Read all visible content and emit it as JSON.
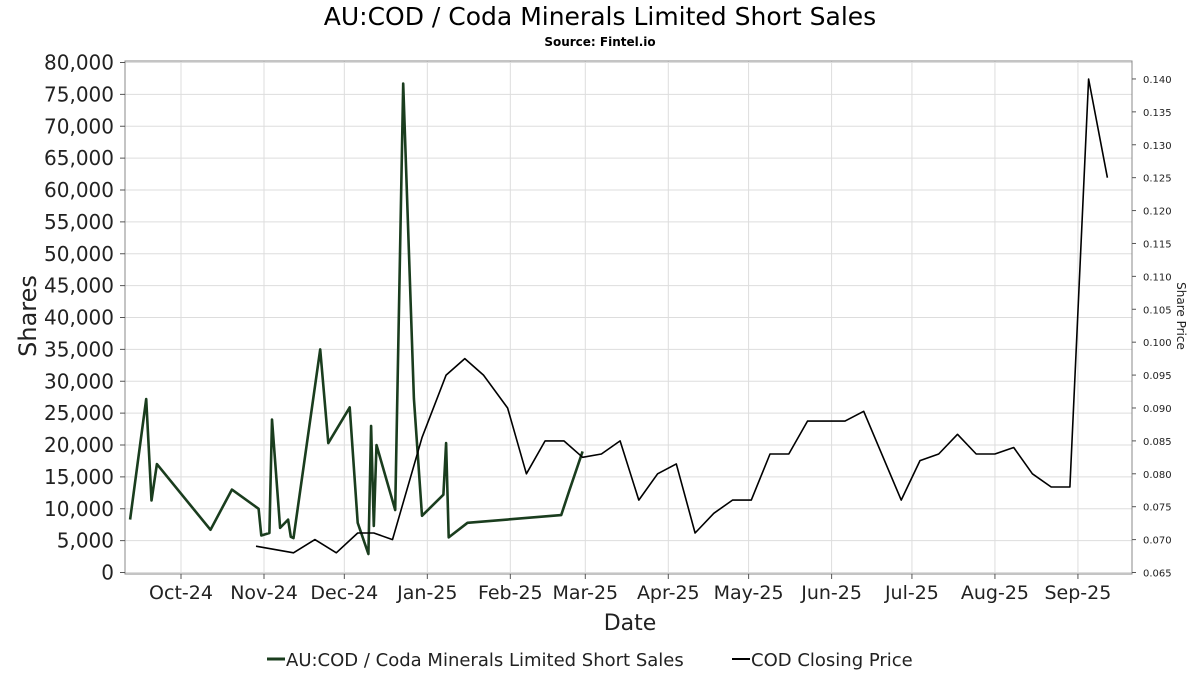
{
  "chart_data": {
    "type": "line",
    "title": "AU:COD / Coda Minerals Limited Short Sales",
    "subtitle": "Source: Fintel.io",
    "xlabel": "Date",
    "ylabel": "Shares",
    "y2label": "Share Price",
    "ylim": [
      0,
      80000
    ],
    "y2lim": [
      0.065,
      0.1425
    ],
    "grid": true,
    "legend_position": "bottom-center",
    "x_ticks": [
      "Oct-24",
      "Nov-24",
      "Dec-24",
      "Jan-25",
      "Feb-25",
      "Mar-25",
      "Apr-25",
      "May-25",
      "Jun-25",
      "Jul-25",
      "Aug-25",
      "Sep-25"
    ],
    "y_ticks": [
      "0",
      "5,000",
      "10,000",
      "15,000",
      "20,000",
      "25,000",
      "30,000",
      "35,000",
      "40,000",
      "45,000",
      "50,000",
      "55,000",
      "60,000",
      "65,000",
      "70,000",
      "75,000",
      "80,000"
    ],
    "y2_ticks": [
      "0.065",
      "0.070",
      "0.075",
      "0.080",
      "0.085",
      "0.090",
      "0.095",
      "0.100",
      "0.105",
      "0.110",
      "0.115",
      "0.120",
      "0.125",
      "0.130",
      "0.135",
      "0.140"
    ],
    "series": [
      {
        "name": "AU:COD / Coda Minerals Limited Short Sales",
        "color": "#1a3d1e",
        "axis": "left",
        "points": [
          [
            "2024-09-12",
            8300
          ],
          [
            "2024-09-18",
            27200
          ],
          [
            "2024-09-20",
            11300
          ],
          [
            "2024-09-22",
            17000
          ],
          [
            "2024-10-12",
            6700
          ],
          [
            "2024-10-20",
            13000
          ],
          [
            "2024-10-30",
            10000
          ],
          [
            "2024-10-31",
            5800
          ],
          [
            "2024-11-03",
            6200
          ],
          [
            "2024-11-04",
            24000
          ],
          [
            "2024-11-07",
            7000
          ],
          [
            "2024-11-10",
            8300
          ],
          [
            "2024-11-11",
            5600
          ],
          [
            "2024-11-12",
            5400
          ],
          [
            "2024-11-22",
            35000
          ],
          [
            "2024-11-25",
            20300
          ],
          [
            "2024-12-03",
            25900
          ],
          [
            "2024-12-06",
            7800
          ],
          [
            "2024-12-10",
            2900
          ],
          [
            "2024-12-11",
            23000
          ],
          [
            "2024-12-12",
            7300
          ],
          [
            "2024-12-13",
            20000
          ],
          [
            "2024-12-20",
            9800
          ],
          [
            "2024-12-23",
            76700
          ],
          [
            "2024-12-27",
            27300
          ],
          [
            "2024-12-30",
            8900
          ],
          [
            "2025-01-07",
            12200
          ],
          [
            "2025-01-08",
            20300
          ],
          [
            "2025-01-09",
            5500
          ],
          [
            "2025-01-16",
            7800
          ],
          [
            "2025-02-20",
            9000
          ],
          [
            "2025-02-23",
            12800
          ],
          [
            "2025-02-28",
            19000
          ]
        ]
      },
      {
        "name": "COD Closing Price",
        "color": "#000000",
        "axis": "right",
        "points": [
          [
            "2024-10-29",
            0.069
          ],
          [
            "2024-11-12",
            0.068
          ],
          [
            "2024-11-20",
            0.07
          ],
          [
            "2024-11-28",
            0.068
          ],
          [
            "2024-12-06",
            0.071
          ],
          [
            "2024-12-12",
            0.071
          ],
          [
            "2024-12-19",
            0.07
          ],
          [
            "2024-12-30",
            0.0855
          ],
          [
            "2025-01-08",
            0.095
          ],
          [
            "2025-01-15",
            0.0975
          ],
          [
            "2025-01-22",
            0.095
          ],
          [
            "2025-01-31",
            0.09
          ],
          [
            "2025-02-07",
            0.08
          ],
          [
            "2025-02-14",
            0.085
          ],
          [
            "2025-02-21",
            0.085
          ],
          [
            "2025-02-28",
            0.0825
          ],
          [
            "2025-03-07",
            0.083
          ],
          [
            "2025-03-14",
            0.085
          ],
          [
            "2025-03-21",
            0.076
          ],
          [
            "2025-03-28",
            0.08
          ],
          [
            "2025-04-04",
            0.0815
          ],
          [
            "2025-04-11",
            0.071
          ],
          [
            "2025-04-18",
            0.074
          ],
          [
            "2025-04-25",
            0.076
          ],
          [
            "2025-05-02",
            0.076
          ],
          [
            "2025-05-09",
            0.083
          ],
          [
            "2025-05-16",
            0.083
          ],
          [
            "2025-05-23",
            0.088
          ],
          [
            "2025-05-30",
            0.088
          ],
          [
            "2025-06-06",
            0.088
          ],
          [
            "2025-06-13",
            0.0895
          ],
          [
            "2025-06-27",
            0.076
          ],
          [
            "2025-07-04",
            0.082
          ],
          [
            "2025-07-11",
            0.083
          ],
          [
            "2025-07-18",
            0.086
          ],
          [
            "2025-07-25",
            0.083
          ],
          [
            "2025-08-01",
            0.083
          ],
          [
            "2025-08-08",
            0.084
          ],
          [
            "2025-08-15",
            0.08
          ],
          [
            "2025-08-22",
            0.078
          ],
          [
            "2025-08-29",
            0.078
          ],
          [
            "2025-09-05",
            0.14
          ],
          [
            "2025-09-12",
            0.125
          ]
        ]
      }
    ]
  }
}
